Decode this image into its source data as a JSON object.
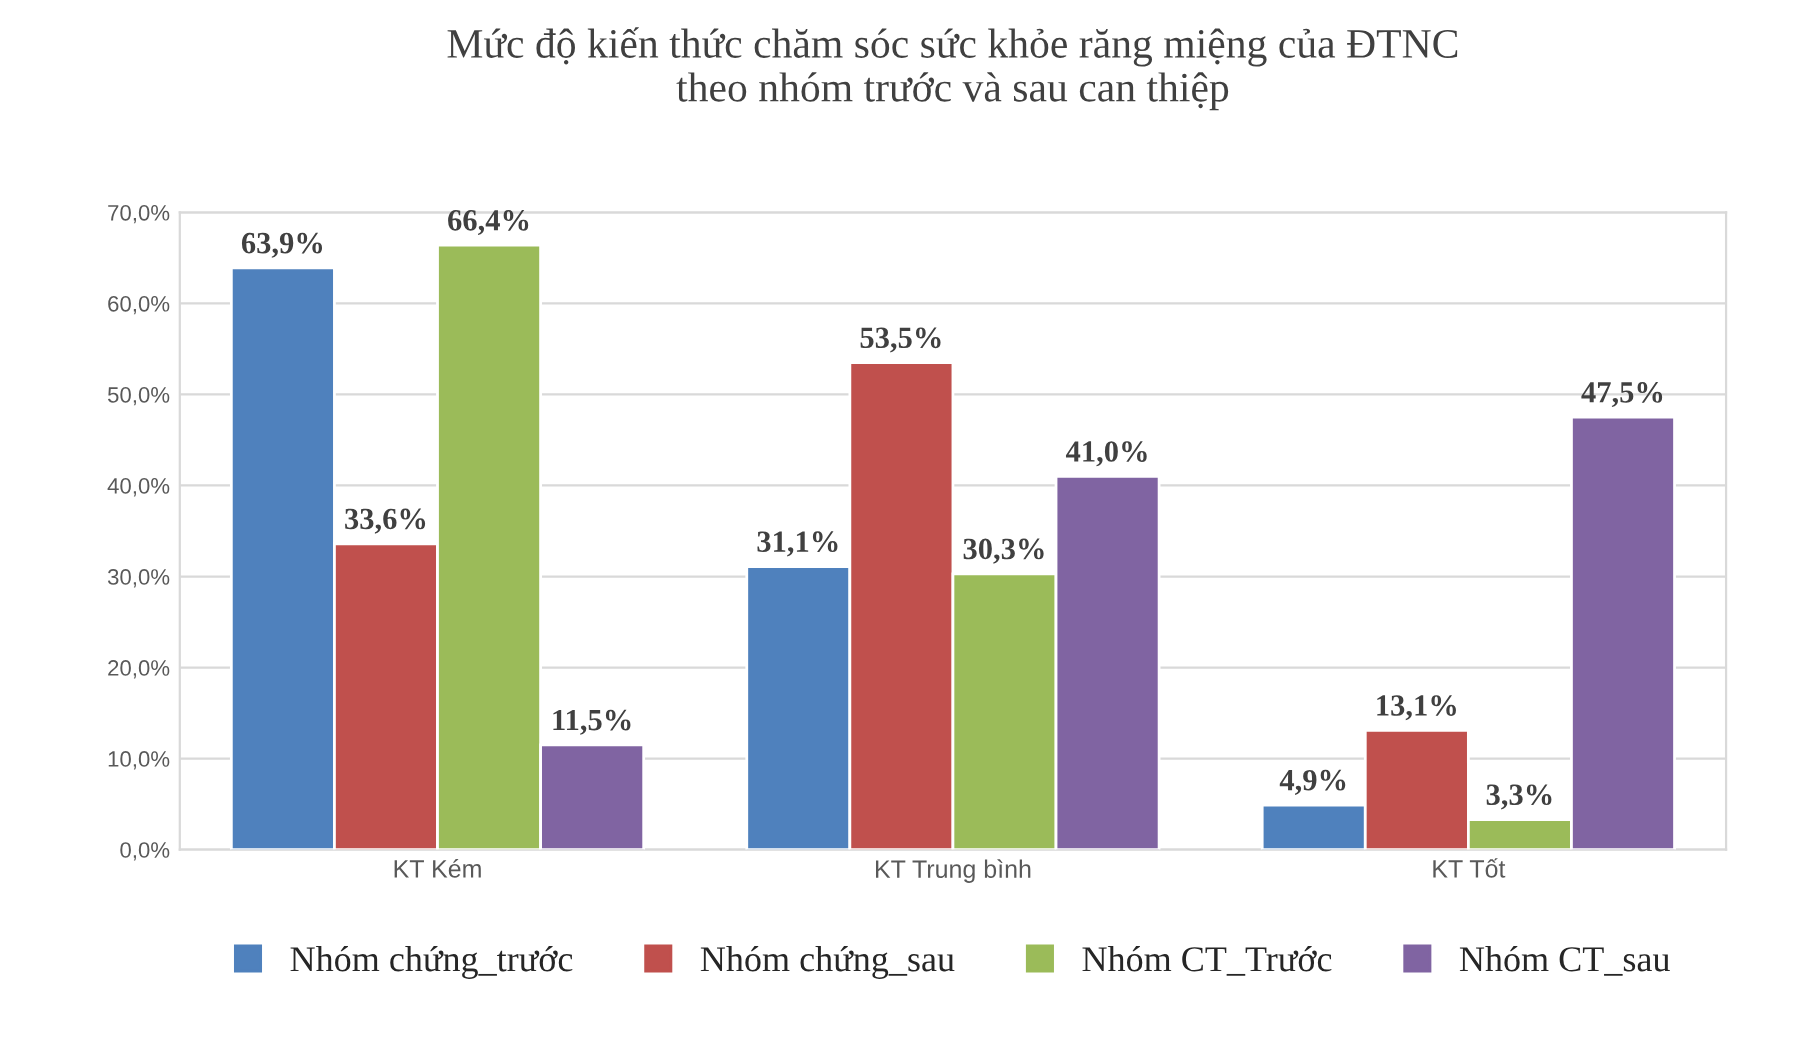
{
  "chart_data": {
    "type": "bar",
    "title": "Mức độ kiến thức chăm sóc sức khỏe răng miệng của ĐTNC\ntheo nhóm trước và sau can thiệp",
    "categories": [
      "KT Kém",
      "KT Trung bình",
      "KT Tốt"
    ],
    "series": [
      {
        "name": "Nhóm chứng_trước",
        "color": "#4f81bd",
        "values": [
          63.9,
          31.1,
          4.9
        ],
        "value_labels": [
          "63,9%",
          "31,1%",
          "4,9%"
        ]
      },
      {
        "name": "Nhóm chứng_sau",
        "color": "#c0504d",
        "values": [
          33.6,
          53.5,
          13.1
        ],
        "value_labels": [
          "33,6%",
          "53,5%",
          "13,1%"
        ]
      },
      {
        "name": "Nhóm CT_Trước",
        "color": "#9bbb59",
        "values": [
          66.4,
          30.3,
          3.3
        ],
        "value_labels": [
          "66,4%",
          "30,3%",
          "3,3%"
        ]
      },
      {
        "name": "Nhóm CT_sau",
        "color": "#8064a2",
        "values": [
          11.5,
          41.0,
          47.5
        ],
        "value_labels": [
          "11,5%",
          "41,0%",
          "47,5%"
        ]
      }
    ],
    "ylim": [
      0,
      70
    ],
    "yticks": [
      {
        "value": 0,
        "label": "0,0%"
      },
      {
        "value": 10,
        "label": "10,0%"
      },
      {
        "value": 20,
        "label": "20,0%"
      },
      {
        "value": 30,
        "label": "30,0%"
      },
      {
        "value": 40,
        "label": "40,0%"
      },
      {
        "value": 50,
        "label": "50,0%"
      },
      {
        "value": 60,
        "label": "60,0%"
      },
      {
        "value": 70,
        "label": "70,0%"
      }
    ],
    "grid": "y",
    "legend": "bottom"
  }
}
